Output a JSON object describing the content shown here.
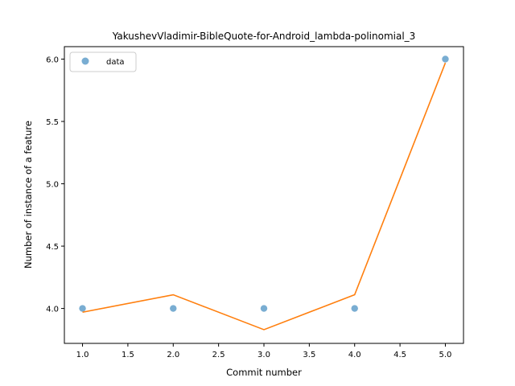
{
  "chart_data": {
    "type": "scatter",
    "title": "YakushevVladimir-BibleQuote-for-Android_lambda-polinomial_3",
    "xlabel": "Commit number",
    "ylabel": "Number of instance of a feature",
    "xlim": [
      0.8,
      5.2
    ],
    "ylim": [
      3.72,
      6.1
    ],
    "xticks": [
      "1.0",
      "1.5",
      "2.0",
      "2.5",
      "3.0",
      "3.5",
      "4.0",
      "4.5",
      "5.0"
    ],
    "yticks": [
      "4.0",
      "4.5",
      "5.0",
      "5.5",
      "6.0"
    ],
    "legend_position": "top-left",
    "series": [
      {
        "name": "data",
        "kind": "scatter",
        "color": "#1f77b4",
        "x": [
          1,
          2,
          3,
          4,
          5
        ],
        "y": [
          4,
          4,
          4,
          4,
          6
        ]
      },
      {
        "kind": "line",
        "color": "#ff7f0e",
        "x": [
          1,
          2,
          3,
          4,
          5
        ],
        "y": [
          3.97,
          4.11,
          3.83,
          4.11,
          5.97
        ]
      }
    ]
  }
}
